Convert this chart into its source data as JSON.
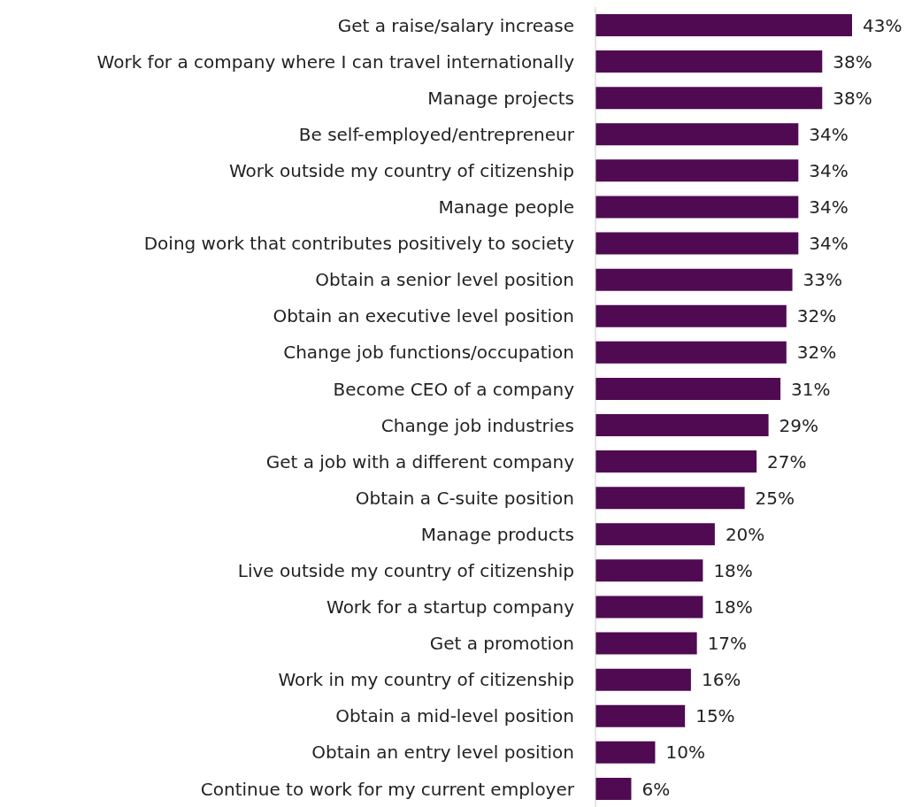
{
  "chart_data": {
    "type": "bar",
    "orientation": "horizontal",
    "categories": [
      "Get a raise/salary increase",
      "Work for a company where I can travel internationally",
      "Manage projects",
      "Be self-employed/entrepreneur",
      "Work outside my country of citizenship",
      "Manage people",
      "Doing work that contributes positively to society",
      "Obtain a senior level position",
      "Obtain an executive level position",
      "Change job functions/occupation",
      "Become CEO of a company",
      "Change job industries",
      "Get a job with a different company",
      "Obtain a C-suite position",
      "Manage products",
      "Live outside my country of citizenship",
      "Work for a startup company",
      "Get a promotion",
      "Work in my country of citizenship",
      "Obtain a mid-level position",
      "Obtain an entry level position",
      "Continue to work for my current employer"
    ],
    "values": [
      43,
      38,
      38,
      34,
      34,
      34,
      34,
      33,
      32,
      32,
      31,
      29,
      27,
      25,
      20,
      18,
      18,
      17,
      16,
      15,
      10,
      6
    ],
    "value_labels": [
      "43%",
      "38%",
      "38%",
      "34%",
      "34%",
      "34%",
      "34%",
      "33%",
      "32%",
      "32%",
      "31%",
      "29%",
      "27%",
      "25%",
      "20%",
      "18%",
      "18%",
      "17%",
      "16%",
      "15%",
      "10%",
      "6%"
    ],
    "color": "#4f0a52",
    "grid": false,
    "legend": false
  }
}
